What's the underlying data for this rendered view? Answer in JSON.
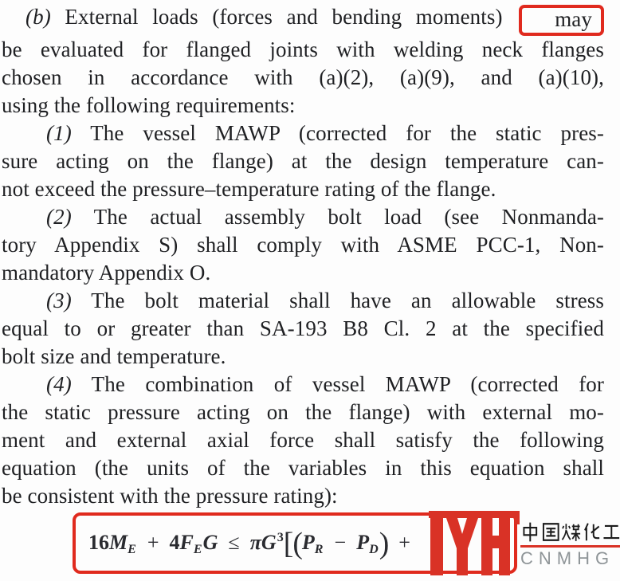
{
  "document": {
    "paragraphs": [
      {
        "lines": [
          {
            "t": "(b) External loads (forces and bending moments)",
            "boxed": "may",
            "ind": 1,
            "j": true
          },
          {
            "t": "be evaluated for flanged joints with welding neck flanges",
            "j": true
          },
          {
            "t": "chosen in accordance with (a)(2), (a)(9), and (a)(10),",
            "j": true
          },
          {
            "t": "using the following requirements:",
            "j": false
          }
        ]
      },
      {
        "lines": [
          {
            "t": "(1) The vessel MAWP (corrected for the static pres-",
            "ind": 2,
            "j": true
          },
          {
            "t": "sure acting on the flange) at the design temperature can-",
            "j": true
          },
          {
            "t": "not exceed the pressure–temperature rating of the flange.",
            "j": false
          }
        ]
      },
      {
        "lines": [
          {
            "t": "(2) The actual assembly bolt load (see Nonmanda-",
            "ind": 2,
            "j": true
          },
          {
            "t": "tory Appendix S) shall comply with ASME PCC-1, Non-",
            "j": true
          },
          {
            "t": "mandatory Appendix O.",
            "j": false
          }
        ]
      },
      {
        "lines": [
          {
            "t": "(3) The bolt material shall have an allowable stress",
            "ind": 2,
            "j": true
          },
          {
            "t": "equal to or greater than SA-193 B8 Cl. 2 at the specified",
            "j": true
          },
          {
            "t": "bolt size and temperature.",
            "j": false
          }
        ]
      },
      {
        "lines": [
          {
            "t": "(4) The combination of vessel MAWP (corrected for",
            "ind": 2,
            "j": true
          },
          {
            "t": "the static pressure acting on the flange) with external mo-",
            "j": true
          },
          {
            "t": "ment and external axial force shall satisfy the following",
            "j": true
          },
          {
            "t": "equation (the units of the variables in this equation shall",
            "j": true
          },
          {
            "t": "be consistent with the pressure rating):",
            "j": false
          }
        ]
      }
    ],
    "equation": {
      "display_text": "16M_E + 4F_EG ≤ πG^3[(P_R − P_D) +",
      "tokens": [
        {
          "t": "16"
        },
        {
          "t": "M",
          "v": 1
        },
        {
          "t": "E",
          "sub": 1
        },
        {
          "t": "+",
          "op": 1
        },
        {
          "t": "4"
        },
        {
          "t": "F",
          "v": 1
        },
        {
          "t": "E",
          "sub": 1
        },
        {
          "t": "G",
          "v": 1
        },
        {
          "t": "≤",
          "op": 1
        },
        {
          "t": "π",
          "v": 1
        },
        {
          "t": "G",
          "v": 1
        },
        {
          "t": "3",
          "sup": 1
        },
        {
          "t": "[",
          "fence": 1
        },
        {
          "t": "(",
          "fence": 1
        },
        {
          "t": "P",
          "v": 1
        },
        {
          "t": "R",
          "sub": 1
        },
        {
          "t": "−",
          "op": 1
        },
        {
          "t": "P",
          "v": 1
        },
        {
          "t": "D",
          "sub": 1
        },
        {
          "t": ")",
          "fence": 1
        },
        {
          "t": "+",
          "op": 1
        }
      ]
    }
  },
  "annotations": {
    "highlighted_word": "may",
    "equation_boxed": true
  },
  "logo": {
    "monogram_letters": "YH",
    "chinese_text": "中国煤化工",
    "latin_text": "CNMHG"
  },
  "colors": {
    "annotation_red": "#e02a1e",
    "logo_red": "#d93226",
    "text_ink": "#1f2023",
    "latin_gray": "#8f9598"
  }
}
